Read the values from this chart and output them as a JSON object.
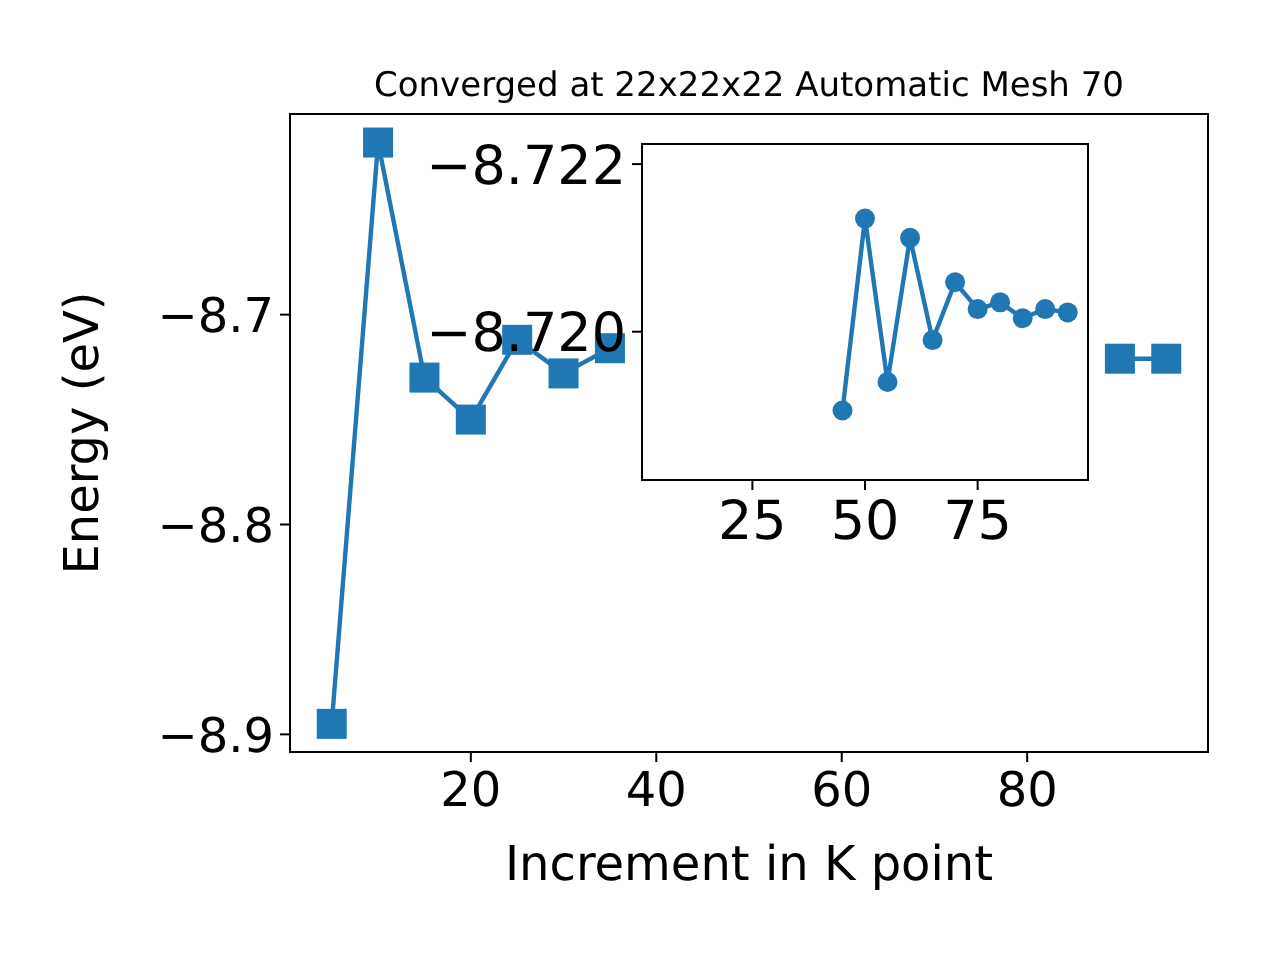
{
  "chart_data": [
    {
      "type": "line",
      "title": "Converged at 22x22x22 Automatic Mesh 70",
      "xlabel": "Increment in K point",
      "ylabel": "Energy (eV)",
      "x": [
        5,
        10,
        15,
        20,
        25,
        30,
        35,
        40,
        45,
        50,
        55,
        60,
        65,
        70,
        75,
        80,
        85,
        90,
        95
      ],
      "series": [
        {
          "color": "#1f77b4",
          "values": [
            -8.895,
            -8.618,
            -8.73,
            -8.75,
            -8.712,
            -8.728,
            -8.716,
            null,
            null,
            null,
            null,
            null,
            null,
            null,
            null,
            null,
            null,
            -8.721,
            -8.721
          ]
        }
      ],
      "xlim": [
        0.5,
        99.5
      ],
      "ylim": [
        -8.9084,
        -8.6044
      ],
      "xticks": [
        20,
        40,
        60,
        80
      ],
      "yticks": [
        {
          "value": -8.9,
          "label": "−8.9"
        },
        {
          "value": -8.8,
          "label": "−8.8"
        },
        {
          "value": -8.7,
          "label": "−8.7"
        }
      ],
      "marker": "square",
      "grid": false
    },
    {
      "type": "line",
      "x": [
        45,
        50,
        55,
        60,
        65,
        70,
        75,
        80,
        85,
        90,
        95
      ],
      "series": [
        {
          "color": "#1f77b4",
          "values": [
            -8.71906,
            -8.72135,
            -8.7194,
            -8.72112,
            -8.7199,
            -8.72059,
            -8.72027,
            -8.72035,
            -8.72016,
            -8.72027,
            -8.72023
          ]
        }
      ],
      "xlim": [
        0.5,
        99.5
      ],
      "ylim": [
        -8.71823,
        -8.72224
      ],
      "xticks": [
        25,
        50,
        75
      ],
      "yticks": [
        {
          "value": -8.722,
          "label": "−8.722"
        },
        {
          "value": -8.72,
          "label": "−8.720"
        }
      ],
      "marker": "circle",
      "grid": false
    }
  ]
}
